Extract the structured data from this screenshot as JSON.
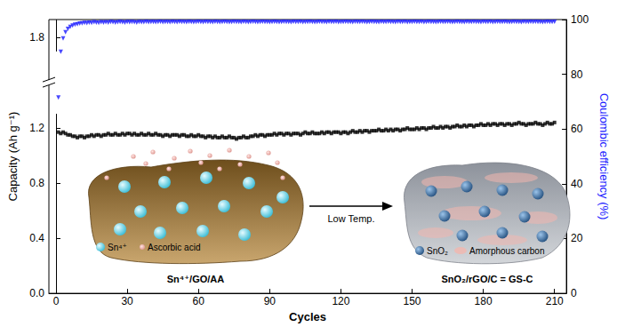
{
  "chart_data": {
    "type": "scatter",
    "x_label": "Cycles",
    "y_label": "Capacity (Ah g⁻¹)",
    "y2_label": "Coulombic efficiency (%)",
    "xlim": [
      -3,
      215
    ],
    "xticks": [
      0,
      30,
      60,
      90,
      120,
      150,
      180,
      210
    ],
    "ylim": [
      0,
      1.93
    ],
    "yticks": [
      {
        "value": 0,
        "label": "0.0"
      },
      0.4,
      0.8,
      1.2,
      1.8
    ],
    "ybreak": [
      1.3,
      1.7
    ],
    "y2lim": [
      0,
      100
    ],
    "y2ticks": [
      0,
      20,
      40,
      60,
      80,
      100
    ],
    "grid": false,
    "x": [
      1,
      2,
      3,
      4,
      5,
      6,
      7,
      8,
      9,
      10,
      11,
      12,
      13,
      14,
      15,
      16,
      17,
      18,
      19,
      20,
      21,
      22,
      23,
      24,
      25,
      26,
      27,
      28,
      29,
      30,
      31,
      32,
      33,
      34,
      35,
      36,
      37,
      38,
      39,
      40,
      41,
      42,
      43,
      44,
      45,
      46,
      47,
      48,
      49,
      50,
      51,
      52,
      53,
      54,
      55,
      56,
      57,
      58,
      59,
      60,
      61,
      62,
      63,
      64,
      65,
      66,
      67,
      68,
      69,
      70,
      71,
      72,
      73,
      74,
      75,
      76,
      77,
      78,
      79,
      80,
      81,
      82,
      83,
      84,
      85,
      86,
      87,
      88,
      89,
      90,
      91,
      92,
      93,
      94,
      95,
      96,
      97,
      98,
      99,
      100,
      101,
      102,
      103,
      104,
      105,
      106,
      107,
      108,
      109,
      110,
      111,
      112,
      113,
      114,
      115,
      116,
      117,
      118,
      119,
      120,
      121,
      122,
      123,
      124,
      125,
      126,
      127,
      128,
      129,
      130,
      131,
      132,
      133,
      134,
      135,
      136,
      137,
      138,
      139,
      140,
      141,
      142,
      143,
      144,
      145,
      146,
      147,
      148,
      149,
      150,
      151,
      152,
      153,
      154,
      155,
      156,
      157,
      158,
      159,
      160,
      161,
      162,
      163,
      164,
      165,
      166,
      167,
      168,
      169,
      170,
      171,
      172,
      173,
      174,
      175,
      176,
      177,
      178,
      179,
      180,
      181,
      182,
      183,
      184,
      185,
      186,
      187,
      188,
      189,
      190,
      191,
      192,
      193,
      194,
      195,
      196,
      197,
      198,
      199,
      200,
      201,
      202,
      203,
      204,
      205,
      206,
      207,
      208,
      209,
      210
    ],
    "series": [
      {
        "color": "#000000",
        "marker": "square",
        "values": [
          1.17,
          1.16,
          1.17,
          1.16,
          1.15,
          1.15,
          1.14,
          1.14,
          1.13,
          1.14,
          1.14,
          1.13,
          1.14,
          1.14,
          1.15,
          1.14,
          1.15,
          1.15,
          1.14,
          1.15,
          1.15,
          1.16,
          1.15,
          1.15,
          1.16,
          1.15,
          1.15,
          1.16,
          1.15,
          1.16,
          1.16,
          1.15,
          1.16,
          1.15,
          1.15,
          1.16,
          1.15,
          1.15,
          1.16,
          1.15,
          1.15,
          1.16,
          1.15,
          1.15,
          1.14,
          1.15,
          1.15,
          1.14,
          1.15,
          1.15,
          1.15,
          1.14,
          1.15,
          1.15,
          1.14,
          1.14,
          1.15,
          1.14,
          1.14,
          1.15,
          1.14,
          1.14,
          1.13,
          1.14,
          1.14,
          1.13,
          1.14,
          1.13,
          1.13,
          1.14,
          1.13,
          1.13,
          1.14,
          1.13,
          1.13,
          1.12,
          1.13,
          1.13,
          1.14,
          1.13,
          1.13,
          1.14,
          1.14,
          1.15,
          1.14,
          1.15,
          1.15,
          1.14,
          1.15,
          1.15,
          1.15,
          1.16,
          1.15,
          1.16,
          1.16,
          1.15,
          1.16,
          1.16,
          1.15,
          1.16,
          1.16,
          1.16,
          1.15,
          1.16,
          1.17,
          1.16,
          1.16,
          1.17,
          1.16,
          1.16,
          1.16,
          1.17,
          1.16,
          1.17,
          1.17,
          1.16,
          1.17,
          1.17,
          1.17,
          1.16,
          1.17,
          1.17,
          1.16,
          1.17,
          1.18,
          1.17,
          1.17,
          1.18,
          1.17,
          1.18,
          1.18,
          1.17,
          1.18,
          1.18,
          1.18,
          1.19,
          1.18,
          1.18,
          1.19,
          1.18,
          1.19,
          1.18,
          1.19,
          1.19,
          1.18,
          1.19,
          1.19,
          1.2,
          1.19,
          1.19,
          1.19,
          1.2,
          1.19,
          1.2,
          1.2,
          1.19,
          1.2,
          1.2,
          1.21,
          1.2,
          1.2,
          1.21,
          1.2,
          1.21,
          1.21,
          1.2,
          1.21,
          1.21,
          1.22,
          1.21,
          1.21,
          1.22,
          1.21,
          1.22,
          1.22,
          1.21,
          1.22,
          1.22,
          1.23,
          1.22,
          1.22,
          1.23,
          1.22,
          1.23,
          1.23,
          1.22,
          1.23,
          1.23,
          1.22,
          1.23,
          1.23,
          1.22,
          1.23,
          1.23,
          1.24,
          1.23,
          1.23,
          1.22,
          1.23,
          1.23,
          1.23,
          1.24,
          1.23,
          1.23,
          1.22,
          1.23,
          1.24,
          1.23,
          1.23,
          1.24
        ]
      },
      {
        "color": "#1a1aff",
        "marker": "triangle-down",
        "axis": "y2",
        "values": [
          71.5,
          88.2,
          93.1,
          95.4,
          96.6,
          97.3,
          97.8,
          98.1,
          98.3,
          98.5,
          98.6,
          98.8,
          98.7,
          98.9,
          98.8,
          99.0,
          98.9,
          98.8,
          99.0,
          98.9,
          99.0,
          98.9,
          99.1,
          99.0,
          98.9,
          99.0,
          99.1,
          99.0,
          98.9,
          99.1,
          99.0,
          99.1,
          99.0,
          98.9,
          99.1,
          99.0,
          99.0,
          99.2,
          99.0,
          99.1,
          99.1,
          99.0,
          99.1,
          99.2,
          99.0,
          99.1,
          99.1,
          99.0,
          99.2,
          99.1,
          99.0,
          99.2,
          99.1,
          99.1,
          99.0,
          99.2,
          99.1,
          99.0,
          99.1,
          99.2,
          99.1,
          99.0,
          99.2,
          99.1,
          99.1,
          99.0,
          99.2,
          99.1,
          99.0,
          99.1,
          99.2,
          99.1,
          99.0,
          99.1,
          99.2,
          99.1,
          99.1,
          99.0,
          99.2,
          99.1,
          99.0,
          99.1,
          99.2,
          99.1,
          99.0,
          99.1,
          99.2,
          99.1,
          99.1,
          99.0,
          99.1,
          99.2,
          99.1,
          99.0,
          99.1,
          99.2,
          99.1,
          99.1,
          99.0,
          99.2,
          99.1,
          99.1,
          99.2,
          99.0,
          99.1,
          99.1,
          99.2,
          99.1,
          99.0,
          99.1,
          99.2,
          99.1,
          99.1,
          99.0,
          99.2,
          99.1,
          99.1,
          99.2,
          99.0,
          99.1,
          99.1,
          99.2,
          99.1,
          99.1,
          99.0,
          99.2,
          99.1,
          99.1,
          99.2,
          99.1,
          99.0,
          99.1,
          99.2,
          99.1,
          99.1,
          99.0,
          99.2,
          99.1,
          99.1,
          99.2,
          99.1,
          99.1,
          99.0,
          99.2,
          99.1,
          99.1,
          99.2,
          99.0,
          99.1,
          99.1,
          99.2,
          99.1,
          99.1,
          99.2,
          99.0,
          99.1,
          99.2,
          99.1,
          99.1,
          99.0,
          99.1,
          99.2,
          99.1,
          99.1,
          99.2,
          99.1,
          99.0,
          99.1,
          99.2,
          99.1,
          99.1,
          99.0,
          99.2,
          99.1,
          99.1,
          99.2,
          99.1,
          99.1,
          99.0,
          99.2,
          99.1,
          99.1,
          99.2,
          99.0,
          99.1,
          99.2,
          99.1,
          99.1,
          99.2,
          99.1,
          99.0,
          99.1,
          99.2,
          99.1,
          99.1,
          99.0,
          99.2,
          99.1,
          99.1,
          99.2,
          99.1,
          99.2,
          99.1,
          99.1,
          99.0,
          99.1,
          99.2,
          99.1,
          99.1,
          99.2
        ]
      }
    ]
  },
  "inset": {
    "left_legend": [
      "Sn⁴⁺",
      "Ascorbic acid"
    ],
    "left_caption": "Sn⁴⁺/GO/AA",
    "arrow_label": "Low Temp.",
    "right_legend": [
      "SnO₂",
      "Amorphous carbon"
    ],
    "right_caption": "SnO₂/rGO/C = GS-C"
  }
}
